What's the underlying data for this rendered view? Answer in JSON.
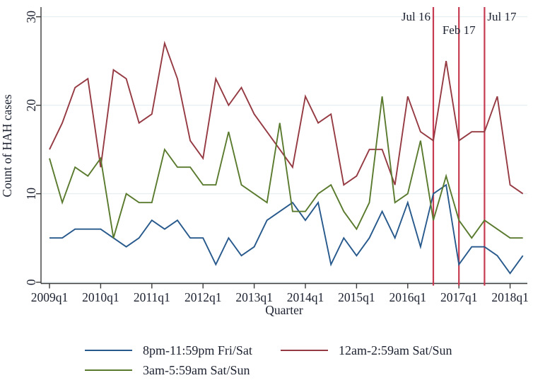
{
  "chart_data": {
    "type": "line",
    "title": "",
    "xlabel": "Quarter",
    "ylabel": "Count of HAH cases",
    "grid": true,
    "legend_position": "bottom",
    "ylim": [
      0,
      30
    ],
    "y_ticks": [
      0,
      10,
      20,
      30
    ],
    "x_tick_indices": [
      0,
      4,
      8,
      12,
      16,
      20,
      24,
      28,
      32,
      36
    ],
    "x_tick_labels": [
      "2009q1",
      "2010q1",
      "2011q1",
      "2012q1",
      "2013q1",
      "2014q1",
      "2015q1",
      "2016q1",
      "2017q1",
      "2018q1"
    ],
    "quarters": [
      "2009q1",
      "2009q2",
      "2009q3",
      "2009q4",
      "2010q1",
      "2010q2",
      "2010q3",
      "2010q4",
      "2011q1",
      "2011q2",
      "2011q3",
      "2011q4",
      "2012q1",
      "2012q2",
      "2012q3",
      "2012q4",
      "2013q1",
      "2013q2",
      "2013q3",
      "2013q4",
      "2014q1",
      "2014q2",
      "2014q3",
      "2014q4",
      "2015q1",
      "2015q2",
      "2015q3",
      "2015q4",
      "2016q1",
      "2016q2",
      "2016q3",
      "2016q4",
      "2017q1",
      "2017q2",
      "2017q3",
      "2017q4",
      "2018q1",
      "2018q2"
    ],
    "series": [
      {
        "name": "8pm-11:59pm Fri/Sat",
        "color": "#27598c",
        "legend_row": 0,
        "legend_col": 0,
        "values": [
          5,
          5,
          6,
          6,
          6,
          5,
          4,
          5,
          7,
          6,
          7,
          5,
          5,
          2,
          5,
          3,
          4,
          7,
          8,
          9,
          7,
          9,
          2,
          5,
          3,
          5,
          8,
          5,
          9,
          4,
          10,
          11,
          2,
          4,
          4,
          3,
          1,
          3
        ]
      },
      {
        "name": "12am-2:59am Sat/Sun",
        "color": "#953a42",
        "legend_row": 0,
        "legend_col": 1,
        "values": [
          15,
          18,
          22,
          23,
          13,
          24,
          23,
          18,
          19,
          27,
          23,
          16,
          14,
          23,
          20,
          22,
          19,
          17,
          15,
          13,
          21,
          18,
          19,
          11,
          12,
          15,
          15,
          11,
          21,
          17,
          16,
          25,
          16,
          17,
          17,
          21,
          11,
          10
        ]
      },
      {
        "name": "3am-5:59am Sat/Sun",
        "color": "#5a7a2e",
        "legend_row": 1,
        "legend_col": 0,
        "values": [
          14,
          9,
          13,
          12,
          14,
          5,
          10,
          9,
          9,
          15,
          13,
          13,
          11,
          11,
          17,
          11,
          10,
          9,
          18,
          8,
          8,
          10,
          11,
          8,
          6,
          9,
          21,
          9,
          10,
          16,
          7,
          12,
          7,
          5,
          7,
          6,
          5,
          5
        ]
      }
    ],
    "vlines": [
      {
        "label": "Jul 16",
        "x_index": 30,
        "label_side": "left",
        "label_row": 0
      },
      {
        "label": "Feb 17",
        "x_index": 32,
        "label_side": "center",
        "label_row": 1
      },
      {
        "label": "Jul 17",
        "x_index": 34,
        "label_side": "right",
        "label_row": 0
      }
    ],
    "vline_color": "#c63a52",
    "gridline_color": "#e2edef",
    "axis_color": "#3a3a3a",
    "text_color": "#1c2130"
  }
}
